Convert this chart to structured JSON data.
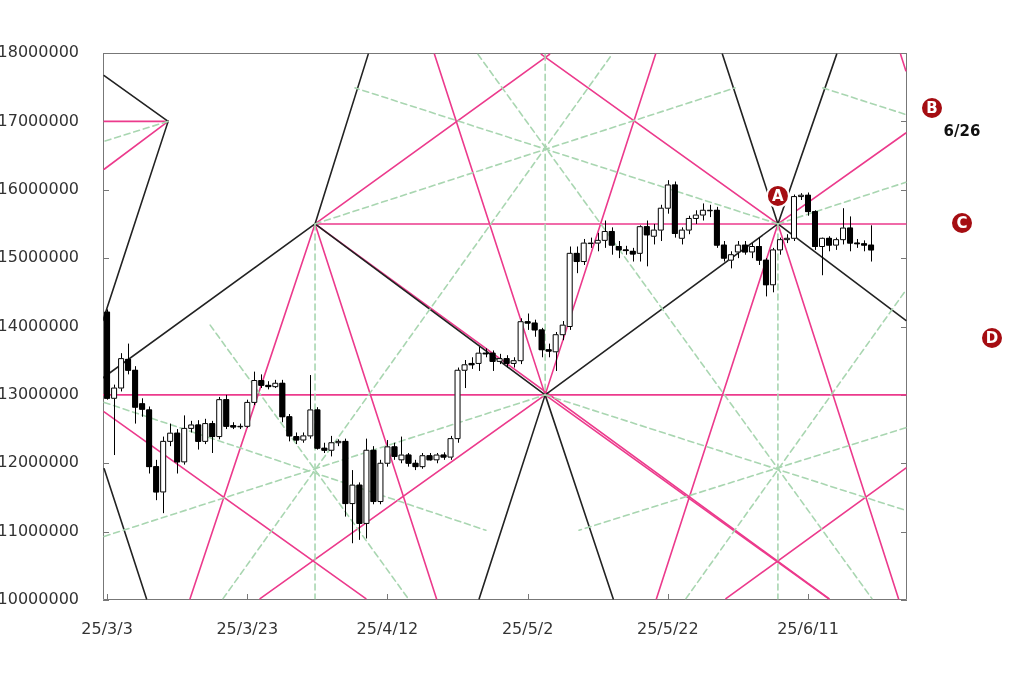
{
  "chart_data": {
    "type": "candlestick",
    "color": "#000000",
    "colors": [
      "#000000",
      "#ffffff",
      "#ffffff",
      "#000000",
      "#000000",
      "#000000",
      "#000000",
      "#000000",
      "#ffffff",
      "#ffffff",
      "#000000",
      "#ffffff",
      "#ffffff",
      "#000000",
      "#ffffff",
      "#000000",
      "#ffffff",
      "#000000",
      "#000000",
      "#ffffff",
      "#ffffff",
      "#ffffff",
      "#000000",
      "#000000",
      "#ffffff",
      "#000000",
      "#000000",
      "#000000",
      "#ffffff",
      "#ffffff",
      "#000000",
      "#000000",
      "#ffffff",
      "#ffffff",
      "#000000",
      "#ffffff",
      "#000000",
      "#ffffff",
      "#000000",
      "#ffffff",
      "#ffffff",
      "#000000",
      "#ffffff",
      "#000000",
      "#000000",
      "#ffffff",
      "#000000",
      "#ffffff",
      "#000000",
      "#ffffff",
      "#ffffff",
      "#ffffff",
      "#000000",
      "#ffffff",
      "#000000",
      "#000000",
      "#ffffff",
      "#000000",
      "#ffffff",
      "#ffffff",
      "#000000",
      "#000000",
      "#000000",
      "#000000",
      "#ffffff",
      "#ffffff",
      "#ffffff",
      "#000000",
      "#ffffff",
      "#ffffff",
      "#ffffff",
      "#ffffff",
      "#000000",
      "#000000",
      "#000000",
      "#000000",
      "#ffffff",
      "#000000",
      "#ffffff",
      "#ffffff",
      "#ffffff",
      "#000000",
      "#ffffff",
      "#ffffff",
      "#ffffff",
      "#ffffff",
      "#ffffff",
      "#000000",
      "#000000",
      "#ffffff",
      "#ffffff",
      "#000000",
      "#ffffff",
      "#000000",
      "#000000",
      "#ffffff",
      "#ffffff",
      "#ffffff",
      "#ffffff",
      "#ffffff",
      "#000000",
      "#000000",
      "#ffffff",
      "#000000",
      "#ffffff",
      "#ffffff",
      "#000000",
      "#000000",
      "#000000",
      "#000000"
    ],
    "xlim": [
      "--03-02T10:00",
      "--06-25T03:00"
    ],
    "ylim": [
      10000000,
      18000000
    ],
    "yticks": [
      10000000,
      11000000,
      12000000,
      13000000,
      14000000,
      15000000,
      16000000,
      17000000,
      18000000
    ],
    "xticks": [
      {
        "value": "--03-03",
        "label": "25/3/3"
      },
      {
        "value": "--03-23",
        "label": "25/3/23"
      },
      {
        "value": "--04-12",
        "label": "25/4/12"
      },
      {
        "value": "--05-02",
        "label": "25/5/2"
      },
      {
        "value": "--05-22",
        "label": "25/5/22"
      },
      {
        "value": "--06-11",
        "label": "25/6/11"
      }
    ],
    "x": [
      "--03-03",
      "--03-04",
      "--03-05",
      "--03-06",
      "--03-07",
      "--03-08",
      "--03-09",
      "--03-10",
      "--03-11",
      "--03-12",
      "--03-13",
      "--03-14",
      "--03-15",
      "--03-16",
      "--03-17",
      "--03-18",
      "--03-19",
      "--03-20",
      "--03-21",
      "--03-22",
      "--03-23",
      "--03-24",
      "--03-25",
      "--03-26",
      "--03-27",
      "--03-28",
      "--03-29",
      "--03-30",
      "--03-31",
      "--04-01",
      "--04-02",
      "--04-03",
      "--04-04",
      "--04-05",
      "--04-06",
      "--04-07",
      "--04-08",
      "--04-09",
      "--04-10",
      "--04-11",
      "--04-12",
      "--04-13",
      "--04-14",
      "--04-15",
      "--04-16",
      "--04-17",
      "--04-18",
      "--04-19",
      "--04-20",
      "--04-21",
      "--04-22",
      "--04-23",
      "--04-24",
      "--04-25",
      "--04-26",
      "--04-27",
      "--04-28",
      "--04-29",
      "--04-30",
      "--05-01",
      "--05-02",
      "--05-03",
      "--05-04",
      "--05-05",
      "--05-06",
      "--05-07",
      "--05-08",
      "--05-09",
      "--05-10",
      "--05-11",
      "--05-12",
      "--05-13",
      "--05-14",
      "--05-15",
      "--05-16",
      "--05-17",
      "--05-18",
      "--05-19",
      "--05-20",
      "--05-21",
      "--05-22",
      "--05-23",
      "--05-24",
      "--05-25",
      "--05-26",
      "--05-27",
      "--05-28",
      "--05-29",
      "--05-30",
      "--05-31",
      "--06-01",
      "--06-02",
      "--06-03",
      "--06-04",
      "--06-05",
      "--06-06",
      "--06-07",
      "--06-08",
      "--06-09",
      "--06-10",
      "--06-11",
      "--06-12",
      "--06-13",
      "--06-14",
      "--06-15",
      "--06-16",
      "--06-17",
      "--06-18",
      "--06-19",
      "--06-20"
    ],
    "ohlc": [
      [
        14210000,
        14250000,
        12930000,
        12950000
      ],
      [
        12950000,
        13150000,
        12120000,
        13100000
      ],
      [
        13100000,
        13610000,
        13050000,
        13530000
      ],
      [
        13520000,
        13750000,
        13300000,
        13360000
      ],
      [
        13360000,
        13420000,
        12580000,
        12820000
      ],
      [
        12870000,
        12950000,
        12680000,
        12790000
      ],
      [
        12780000,
        12830000,
        11850000,
        11950000
      ],
      [
        11950000,
        12050000,
        11460000,
        11580000
      ],
      [
        11580000,
        12390000,
        11270000,
        12320000
      ],
      [
        12320000,
        12580000,
        12250000,
        12440000
      ],
      [
        12440000,
        12500000,
        11850000,
        12020000
      ],
      [
        12020000,
        12700000,
        11980000,
        12510000
      ],
      [
        12510000,
        12620000,
        12450000,
        12560000
      ],
      [
        12560000,
        12630000,
        12200000,
        12320000
      ],
      [
        12320000,
        12650000,
        12280000,
        12580000
      ],
      [
        12580000,
        12620000,
        12150000,
        12390000
      ],
      [
        12390000,
        12970000,
        12350000,
        12930000
      ],
      [
        12930000,
        13000000,
        12500000,
        12540000
      ],
      [
        12550000,
        12600000,
        12500000,
        12530000
      ],
      [
        12540000,
        12580000,
        12500000,
        12540000
      ],
      [
        12540000,
        12930000,
        12520000,
        12890000
      ],
      [
        12890000,
        13340000,
        12850000,
        13210000
      ],
      [
        13210000,
        13300000,
        13100000,
        13140000
      ],
      [
        13140000,
        13200000,
        13080000,
        13120000
      ],
      [
        13120000,
        13220000,
        13100000,
        13170000
      ],
      [
        13170000,
        13220000,
        12600000,
        12680000
      ],
      [
        12680000,
        12720000,
        12320000,
        12400000
      ],
      [
        12390000,
        12450000,
        12280000,
        12340000
      ],
      [
        12340000,
        12450000,
        12300000,
        12400000
      ],
      [
        12400000,
        13290000,
        12360000,
        12780000
      ],
      [
        12780000,
        12820000,
        12200000,
        12220000
      ],
      [
        12220000,
        12300000,
        12150000,
        12190000
      ],
      [
        12190000,
        12400000,
        12100000,
        12300000
      ],
      [
        12300000,
        12350000,
        12250000,
        12320000
      ],
      [
        12320000,
        12360000,
        11220000,
        11410000
      ],
      [
        11410000,
        11900000,
        10830000,
        11680000
      ],
      [
        11680000,
        11720000,
        10880000,
        11120000
      ],
      [
        11120000,
        12360000,
        10900000,
        12190000
      ],
      [
        12190000,
        12250000,
        11400000,
        11440000
      ],
      [
        11440000,
        12050000,
        11400000,
        12000000
      ],
      [
        12000000,
        12340000,
        11950000,
        12240000
      ],
      [
        12240000,
        12300000,
        12050000,
        12100000
      ],
      [
        12050000,
        12390000,
        12000000,
        12120000
      ],
      [
        12120000,
        12150000,
        11950000,
        12000000
      ],
      [
        12000000,
        12050000,
        11900000,
        11950000
      ],
      [
        11950000,
        12150000,
        11920000,
        12110000
      ],
      [
        12110000,
        12150000,
        12040000,
        12050000
      ],
      [
        12050000,
        12150000,
        12000000,
        12120000
      ],
      [
        12120000,
        12160000,
        12050000,
        12090000
      ],
      [
        12090000,
        12400000,
        12050000,
        12360000
      ],
      [
        12360000,
        13400000,
        12300000,
        13360000
      ],
      [
        13360000,
        13510000,
        13100000,
        13440000
      ],
      [
        13460000,
        13550000,
        13380000,
        13440000
      ],
      [
        13460000,
        13700000,
        13350000,
        13610000
      ],
      [
        13610000,
        13680000,
        13550000,
        13600000
      ],
      [
        13610000,
        13650000,
        13350000,
        13490000
      ],
      [
        13490000,
        13600000,
        13450000,
        13530000
      ],
      [
        13530000,
        13580000,
        13400000,
        13460000
      ],
      [
        13460000,
        13550000,
        13400000,
        13500000
      ],
      [
        13500000,
        14120000,
        13450000,
        14070000
      ],
      [
        14070000,
        14190000,
        13950000,
        14050000
      ],
      [
        14050000,
        14100000,
        13850000,
        13950000
      ],
      [
        13950000,
        13980000,
        13550000,
        13660000
      ],
      [
        13660000,
        13750000,
        13550000,
        13640000
      ],
      [
        13630000,
        13920000,
        13350000,
        13880000
      ],
      [
        13880000,
        14080000,
        13800000,
        14020000
      ],
      [
        14000000,
        15170000,
        13950000,
        15070000
      ],
      [
        15070000,
        15170000,
        14780000,
        14950000
      ],
      [
        14950000,
        15280000,
        14900000,
        15220000
      ],
      [
        15220000,
        15300000,
        15150000,
        15220000
      ],
      [
        15220000,
        15370000,
        15100000,
        15260000
      ],
      [
        15260000,
        15550000,
        15150000,
        15390000
      ],
      [
        15390000,
        15450000,
        15050000,
        15190000
      ],
      [
        15170000,
        15250000,
        15000000,
        15120000
      ],
      [
        15120000,
        15180000,
        15050000,
        15110000
      ],
      [
        15100000,
        15150000,
        14950000,
        15060000
      ],
      [
        15070000,
        15480000,
        14950000,
        15460000
      ],
      [
        15460000,
        15550000,
        14880000,
        15340000
      ],
      [
        15320000,
        15500000,
        15200000,
        15410000
      ],
      [
        15410000,
        15780000,
        15250000,
        15730000
      ],
      [
        15730000,
        16140000,
        15650000,
        16070000
      ],
      [
        16070000,
        16120000,
        15300000,
        15360000
      ],
      [
        15290000,
        15450000,
        15200000,
        15410000
      ],
      [
        15410000,
        15620000,
        15350000,
        15580000
      ],
      [
        15580000,
        15700000,
        15500000,
        15630000
      ],
      [
        15630000,
        15800000,
        15550000,
        15700000
      ],
      [
        15700000,
        15780000,
        15600000,
        15700000
      ],
      [
        15700000,
        15750000,
        15150000,
        15190000
      ],
      [
        15190000,
        15250000,
        14950000,
        15000000
      ],
      [
        14970000,
        15100000,
        14850000,
        15050000
      ],
      [
        15090000,
        15250000,
        15000000,
        15190000
      ],
      [
        15190000,
        15250000,
        15050000,
        15090000
      ],
      [
        15090000,
        15220000,
        15000000,
        15170000
      ],
      [
        15170000,
        15300000,
        14900000,
        14970000
      ],
      [
        14970000,
        15000000,
        14440000,
        14610000
      ],
      [
        14610000,
        15150000,
        14500000,
        15120000
      ],
      [
        15120000,
        15300000,
        15050000,
        15270000
      ],
      [
        15270000,
        15350000,
        15220000,
        15290000
      ],
      [
        15290000,
        15930000,
        15250000,
        15900000
      ],
      [
        15900000,
        15950000,
        15850000,
        15920000
      ],
      [
        15920000,
        15960000,
        15620000,
        15680000
      ],
      [
        15680000,
        15700000,
        15120000,
        15170000
      ],
      [
        15170000,
        15300000,
        14750000,
        15290000
      ],
      [
        15290000,
        15320000,
        15100000,
        15190000
      ],
      [
        15190000,
        15300000,
        15120000,
        15270000
      ],
      [
        15270000,
        15730000,
        15200000,
        15440000
      ],
      [
        15440000,
        15610000,
        15100000,
        15220000
      ],
      [
        15220000,
        15280000,
        15150000,
        15210000
      ],
      [
        15210000,
        15260000,
        15100000,
        15190000
      ],
      [
        15190000,
        15480000,
        14950000,
        15120000
      ]
    ],
    "series": [
      {
        "type": "line",
        "color": "#a9d6b1",
        "line_style": "dashed",
        "x": [
          "--04-01T16:00",
          "--04-01T16:00"
        ],
        "values": [
          15500000,
          10020000
        ]
      },
      {
        "type": "line",
        "color": "#a9d6b1",
        "line_style": "dashed",
        "x": [
          "--05-04T12:00",
          "--05-04T12:00"
        ],
        "values": [
          17980000,
          13000000
        ]
      },
      {
        "type": "line",
        "color": "#a9d6b1",
        "line_style": "dashed",
        "x": [
          "--06-06T17:00",
          "--06-06T17:00"
        ],
        "values": [
          15500000,
          10020000
        ]
      },
      {
        "type": "line",
        "color": "#a9d6b1",
        "line_style": "dashed",
        "x": [
          "--03-19T13:00",
          "--05-14T01:00"
        ],
        "values": [
          10020000,
          17980000
        ]
      },
      {
        "type": "line",
        "color": "#a9d6b1",
        "line_style": "dashed",
        "x": [
          "--04-24T22:00",
          "--06-20T03:00"
        ],
        "values": [
          17980000,
          10020000
        ]
      },
      {
        "type": "line",
        "color": "#a9d6b1",
        "line_style": "dashed",
        "x": [
          "--05-24T14:00",
          "--06-24T23:00"
        ],
        "values": [
          10020000,
          14530000
        ]
      },
      {
        "type": "line",
        "color": "#a9d6b1",
        "line_style": "dashed",
        "x": [
          "--03-17T17:00",
          "--04-14T23:00"
        ],
        "values": [
          14020000,
          10020000
        ]
      },
      {
        "type": "line",
        "color": "#a9d6b1",
        "line_style": "dashed",
        "x": [
          "--03-02T14:00",
          "--05-04T12:00"
        ],
        "values": [
          10930000,
          13000000
        ]
      },
      {
        "type": "line",
        "color": "#a9d6b1",
        "line_style": "dashed",
        "x": [
          "--03-02T14:00",
          "--04-26T01:00"
        ],
        "values": [
          12890000,
          11020000
        ]
      },
      {
        "type": "line",
        "color": "#a9d6b1",
        "line_style": "dashed",
        "x": [
          "--05-04T12:00",
          "--06-24T23:00"
        ],
        "values": [
          13000000,
          11310000
        ]
      },
      {
        "type": "line",
        "color": "#a9d6b1",
        "line_style": "dashed",
        "x": [
          "--06-24T23:00",
          "--05-09T08:00"
        ],
        "values": [
          12520000,
          11020000
        ]
      },
      {
        "type": "line",
        "color": "#a9d6b1",
        "line_style": "dashed",
        "x": [
          "--04-01T16:00",
          "--05-31T14:00"
        ],
        "values": [
          15500000,
          17490000
        ]
      },
      {
        "type": "line",
        "color": "#a9d6b1",
        "line_style": "dashed",
        "x": [
          "--06-06T17:00",
          "--04-07T09:00"
        ],
        "values": [
          15500000,
          17490000
        ]
      },
      {
        "type": "line",
        "color": "#a9d6b1",
        "line_style": "dashed",
        "x": [
          "--06-06T17:00",
          "--06-24T23:00"
        ],
        "values": [
          15500000,
          16110000
        ]
      },
      {
        "type": "line",
        "color": "#a9d6b1",
        "line_style": "dashed",
        "x": [
          "--06-13T03:00",
          "--06-24T23:00"
        ],
        "values": [
          17490000,
          17100000
        ]
      },
      {
        "type": "line",
        "color": "#a9d6b1",
        "line_style": "dashed",
        "x": [
          "--03-11T17:00",
          "--03-02T14:00"
        ],
        "values": [
          17000000,
          16710000
        ]
      },
      {
        "type": "line",
        "color": "#222222",
        "x": [
          "--03-02T14:00",
          "--03-11T17:00"
        ],
        "values": [
          17670000,
          17000000
        ]
      },
      {
        "type": "line",
        "color": "#222222",
        "x": [
          "--03-11T17:00",
          "--03-02T10:00"
        ],
        "values": [
          17000000,
          14090000
        ]
      },
      {
        "type": "line",
        "color": "#222222",
        "x": [
          "--03-02T14:00",
          "--03-08T15:00"
        ],
        "values": [
          11920000,
          10020000
        ]
      },
      {
        "type": "line",
        "color": "#222222",
        "x": [
          "--03-02T10:00",
          "--04-01T16:00",
          "--05-04T12:00",
          "--06-06T17:00",
          "--06-24T23:00"
        ],
        "values": [
          13250000,
          15500000,
          13000000,
          15500000,
          14090000
        ]
      },
      {
        "type": "line",
        "color": "#222222",
        "x": [
          "--04-01T16:00",
          "--04-09T06:00"
        ],
        "values": [
          15500000,
          17980000
        ]
      },
      {
        "type": "line",
        "color": "#222222",
        "x": [
          "--04-25T02:00",
          "--05-04T12:00",
          "--05-14T05:00"
        ],
        "values": [
          10020000,
          13000000,
          10020000
        ]
      },
      {
        "type": "line",
        "color": "#222222",
        "x": [
          "--05-29T19:00",
          "--06-06T17:00",
          "--06-15T02:00"
        ],
        "values": [
          17980000,
          15500000,
          17980000
        ]
      },
      {
        "type": "line",
        "color": "#ec3a8c",
        "x": [
          "--03-02T10:00",
          "--06-24T23:00"
        ],
        "values": [
          13000000,
          13000000
        ]
      },
      {
        "type": "line",
        "color": "#ec3a8c",
        "x": [
          "--04-01T16:00",
          "--06-24T23:00"
        ],
        "values": [
          15500000,
          15500000
        ]
      },
      {
        "type": "line",
        "color": "#ec3a8c",
        "x": [
          "--03-02T14:00",
          "--03-11T17:00"
        ],
        "values": [
          17000000,
          17000000
        ]
      },
      {
        "type": "line",
        "color": "#ec3a8c",
        "x": [
          "--03-02T14:00",
          "--03-11T17:00"
        ],
        "values": [
          16300000,
          17000000
        ]
      },
      {
        "type": "line",
        "color": "#ec3a8c",
        "x": [
          "--03-02T14:00",
          "--04-08T22:00"
        ],
        "values": [
          12750000,
          10020000
        ]
      },
      {
        "type": "line",
        "color": "#ec3a8c",
        "x": [
          "--03-14T20:00",
          "--04-01T16:00"
        ],
        "values": [
          10020000,
          15500000
        ]
      },
      {
        "type": "line",
        "color": "#ec3a8c",
        "x": [
          "--04-01T16:00",
          "--04-19T00:00"
        ],
        "values": [
          15500000,
          10020000
        ]
      },
      {
        "type": "line",
        "color": "#ec3a8c",
        "x": [
          "--03-24T20:00",
          "--05-04T12:00"
        ],
        "values": [
          10020000,
          13000000
        ]
      },
      {
        "type": "line",
        "color": "#ec3a8c",
        "x": [
          "--05-04T12:00",
          "--06-13T22:00"
        ],
        "values": [
          13000000,
          10020000
        ]
      },
      {
        "type": "line",
        "color": "#ec3a8c",
        "x": [
          "--04-18T17:00",
          "--05-04T12:00"
        ],
        "values": [
          17980000,
          13000000
        ]
      },
      {
        "type": "line",
        "color": "#ec3a8c",
        "x": [
          "--05-20T06:00",
          "--05-04T12:00"
        ],
        "values": [
          17980000,
          13000000
        ]
      },
      {
        "type": "line",
        "color": "#ec3a8c",
        "x": [
          "--05-20T09:00",
          "--06-06T17:00"
        ],
        "values": [
          10020000,
          15500000
        ]
      },
      {
        "type": "line",
        "color": "#ec3a8c",
        "x": [
          "--06-06T17:00",
          "--06-23T22:00"
        ],
        "values": [
          15500000,
          10020000
        ]
      },
      {
        "type": "line",
        "color": "#ec3a8c",
        "x": [
          "--04-01T16:00",
          "--06-14T00:00"
        ],
        "values": [
          15500000,
          10020000
        ]
      },
      {
        "type": "line",
        "color": "#ec3a8c",
        "x": [
          "--05-30T07:00",
          "--06-24T23:00"
        ],
        "values": [
          10020000,
          11930000
        ]
      },
      {
        "type": "line",
        "color": "#ec3a8c",
        "x": [
          "--05-03T23:00",
          "--06-06T17:00"
        ],
        "values": [
          17980000,
          15500000
        ]
      },
      {
        "type": "line",
        "color": "#ec3a8c",
        "x": [
          "--06-06T17:00",
          "--06-24T23:00"
        ],
        "values": [
          15500000,
          16830000
        ]
      },
      {
        "type": "line",
        "color": "#ec3a8c",
        "x": [
          "--04-01T16:00",
          "--05-05T03:00"
        ],
        "values": [
          15500000,
          17980000
        ]
      },
      {
        "type": "line",
        "color": "#ec3a8c",
        "x": [
          "--06-24T05:00",
          "--06-24T23:00"
        ],
        "values": [
          17980000,
          17740000
        ]
      }
    ],
    "annotations": [
      {
        "text": "A",
        "x": "--06-06T17:00",
        "y": 15910000
      },
      "B",
      "6/26",
      "C",
      "D"
    ]
  }
}
